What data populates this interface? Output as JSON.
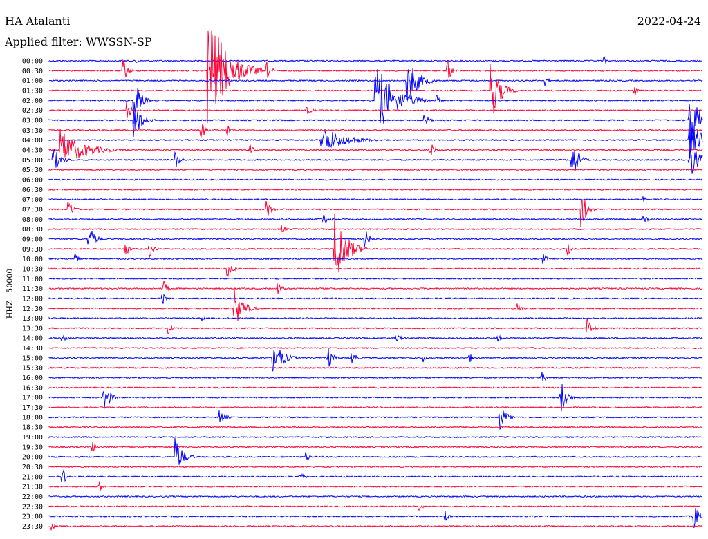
{
  "header": {
    "station": "HA Atalanti",
    "date": "2022-04-24",
    "filter": "Applied filter: WWSSN-SP"
  },
  "colors": {
    "even_trace": "#0000ff",
    "odd_trace": "#ff0033",
    "background": "#ffffff"
  },
  "chart_data": {
    "type": "line",
    "title": "HA Atalanti",
    "ylabel": "HHZ - 50000",
    "x_range_minutes": [
      0,
      30
    ],
    "rows": [
      "00:00",
      "00:30",
      "01:00",
      "01:30",
      "02:00",
      "02:30",
      "03:00",
      "03:30",
      "04:00",
      "04:30",
      "05:00",
      "05:30",
      "06:00",
      "06:30",
      "07:00",
      "07:30",
      "08:00",
      "08:30",
      "09:00",
      "09:30",
      "10:00",
      "10:30",
      "11:00",
      "11:30",
      "12:00",
      "12:30",
      "13:00",
      "13:30",
      "14:00",
      "14:30",
      "15:00",
      "15:30",
      "16:00",
      "16:30",
      "17:00",
      "17:30",
      "18:00",
      "18:30",
      "19:00",
      "19:30",
      "20:00",
      "20:30",
      "21:00",
      "21:30",
      "22:00",
      "22:30",
      "23:00",
      "23:30"
    ],
    "events": [
      {
        "row": 0,
        "minute": 4.0,
        "amp": 8,
        "dur": 0.3
      },
      {
        "row": 0,
        "minute": 25.5,
        "amp": 6,
        "dur": 0.3
      },
      {
        "row": 1,
        "minute": 3.4,
        "amp": 20,
        "dur": 0.6
      },
      {
        "row": 1,
        "minute": 7.3,
        "amp": 90,
        "dur": 2.5
      },
      {
        "row": 1,
        "minute": 10.0,
        "amp": 14,
        "dur": 0.6
      },
      {
        "row": 1,
        "minute": 18.3,
        "amp": 16,
        "dur": 0.6
      },
      {
        "row": 2,
        "minute": 16.4,
        "amp": 40,
        "dur": 1.5
      },
      {
        "row": 2,
        "minute": 22.8,
        "amp": 8,
        "dur": 0.4
      },
      {
        "row": 3,
        "minute": 20.3,
        "amp": 45,
        "dur": 1.2
      },
      {
        "row": 3,
        "minute": 26.9,
        "amp": 8,
        "dur": 0.3
      },
      {
        "row": 4,
        "minute": 15.0,
        "amp": 55,
        "dur": 2.5
      },
      {
        "row": 4,
        "minute": 3.9,
        "amp": 35,
        "dur": 0.8
      },
      {
        "row": 4,
        "minute": 17.8,
        "amp": 8,
        "dur": 0.5
      },
      {
        "row": 5,
        "minute": 3.6,
        "amp": 18,
        "dur": 0.5
      },
      {
        "row": 5,
        "minute": 11.8,
        "amp": 14,
        "dur": 0.6
      },
      {
        "row": 6,
        "minute": 3.9,
        "amp": 30,
        "dur": 1.0
      },
      {
        "row": 6,
        "minute": 17.2,
        "amp": 12,
        "dur": 0.6
      },
      {
        "row": 6,
        "minute": 29.4,
        "amp": 40,
        "dur": 2.0
      },
      {
        "row": 7,
        "minute": 7.0,
        "amp": 14,
        "dur": 0.6
      },
      {
        "row": 7,
        "minute": 8.2,
        "amp": 10,
        "dur": 0.5
      },
      {
        "row": 8,
        "minute": 12.5,
        "amp": 22,
        "dur": 3.0
      },
      {
        "row": 8,
        "minute": 29.4,
        "amp": 35,
        "dur": 1.5
      },
      {
        "row": 9,
        "minute": 0.5,
        "amp": 30,
        "dur": 3.0
      },
      {
        "row": 9,
        "minute": 9.2,
        "amp": 10,
        "dur": 0.5
      },
      {
        "row": 9,
        "minute": 17.5,
        "amp": 14,
        "dur": 0.5
      },
      {
        "row": 10,
        "minute": 0.2,
        "amp": 18,
        "dur": 1.0
      },
      {
        "row": 10,
        "minute": 5.8,
        "amp": 14,
        "dur": 0.6
      },
      {
        "row": 10,
        "minute": 24.0,
        "amp": 36,
        "dur": 0.8
      },
      {
        "row": 10,
        "minute": 29.4,
        "amp": 30,
        "dur": 1.2
      },
      {
        "row": 14,
        "minute": 27.3,
        "amp": 6,
        "dur": 0.3
      },
      {
        "row": 15,
        "minute": 0.9,
        "amp": 16,
        "dur": 0.6
      },
      {
        "row": 15,
        "minute": 10.0,
        "amp": 16,
        "dur": 0.6
      },
      {
        "row": 15,
        "minute": 24.4,
        "amp": 34,
        "dur": 0.8
      },
      {
        "row": 16,
        "minute": 12.5,
        "amp": 8,
        "dur": 1.2
      },
      {
        "row": 16,
        "minute": 27.3,
        "amp": 6,
        "dur": 0.6
      },
      {
        "row": 17,
        "minute": 10.7,
        "amp": 8,
        "dur": 0.4
      },
      {
        "row": 18,
        "minute": 1.8,
        "amp": 22,
        "dur": 0.8
      },
      {
        "row": 18,
        "minute": 14.5,
        "amp": 16,
        "dur": 0.6
      },
      {
        "row": 19,
        "minute": 3.5,
        "amp": 12,
        "dur": 0.5
      },
      {
        "row": 19,
        "minute": 4.6,
        "amp": 14,
        "dur": 0.6
      },
      {
        "row": 19,
        "minute": 13.1,
        "amp": 60,
        "dur": 1.5
      },
      {
        "row": 19,
        "minute": 23.8,
        "amp": 10,
        "dur": 0.5
      },
      {
        "row": 20,
        "minute": 1.2,
        "amp": 10,
        "dur": 0.4
      },
      {
        "row": 20,
        "minute": 22.7,
        "amp": 8,
        "dur": 0.5
      },
      {
        "row": 21,
        "minute": 8.2,
        "amp": 16,
        "dur": 0.6
      },
      {
        "row": 23,
        "minute": 5.2,
        "amp": 16,
        "dur": 0.6
      },
      {
        "row": 23,
        "minute": 10.5,
        "amp": 10,
        "dur": 0.6
      },
      {
        "row": 24,
        "minute": 5.2,
        "amp": 10,
        "dur": 0.5
      },
      {
        "row": 25,
        "minute": 8.5,
        "amp": 30,
        "dur": 1.2
      },
      {
        "row": 25,
        "minute": 21.5,
        "amp": 8,
        "dur": 0.6
      },
      {
        "row": 26,
        "minute": 7.0,
        "amp": 6,
        "dur": 0.4
      },
      {
        "row": 27,
        "minute": 5.5,
        "amp": 10,
        "dur": 0.4
      },
      {
        "row": 27,
        "minute": 24.7,
        "amp": 18,
        "dur": 0.6
      },
      {
        "row": 28,
        "minute": 0.6,
        "amp": 8,
        "dur": 0.5
      },
      {
        "row": 28,
        "minute": 15.9,
        "amp": 10,
        "dur": 0.6
      },
      {
        "row": 28,
        "minute": 20.6,
        "amp": 8,
        "dur": 0.5
      },
      {
        "row": 30,
        "minute": 10.3,
        "amp": 30,
        "dur": 1.2
      },
      {
        "row": 30,
        "minute": 12.8,
        "amp": 20,
        "dur": 0.6
      },
      {
        "row": 30,
        "minute": 13.9,
        "amp": 14,
        "dur": 0.5
      },
      {
        "row": 30,
        "minute": 19.3,
        "amp": 8,
        "dur": 0.5
      },
      {
        "row": 30,
        "minute": 17.2,
        "amp": 8,
        "dur": 0.3
      },
      {
        "row": 32,
        "minute": 22.6,
        "amp": 10,
        "dur": 0.6
      },
      {
        "row": 34,
        "minute": 2.5,
        "amp": 25,
        "dur": 0.8
      },
      {
        "row": 34,
        "minute": 23.5,
        "amp": 28,
        "dur": 0.8
      },
      {
        "row": 36,
        "minute": 7.8,
        "amp": 12,
        "dur": 0.8
      },
      {
        "row": 36,
        "minute": 20.7,
        "amp": 20,
        "dur": 0.8
      },
      {
        "row": 39,
        "minute": 2.0,
        "amp": 8,
        "dur": 0.5
      },
      {
        "row": 40,
        "minute": 5.8,
        "amp": 28,
        "dur": 1.0
      },
      {
        "row": 40,
        "minute": 11.8,
        "amp": 8,
        "dur": 0.5
      },
      {
        "row": 42,
        "minute": 0.6,
        "amp": 14,
        "dur": 0.6
      },
      {
        "row": 42,
        "minute": 11.5,
        "amp": 6,
        "dur": 0.8
      },
      {
        "row": 43,
        "minute": 2.3,
        "amp": 10,
        "dur": 0.5
      },
      {
        "row": 45,
        "minute": 17.0,
        "amp": 8,
        "dur": 0.4
      },
      {
        "row": 46,
        "minute": 18.2,
        "amp": 8,
        "dur": 0.5
      },
      {
        "row": 46,
        "minute": 29.6,
        "amp": 20,
        "dur": 0.8
      },
      {
        "row": 47,
        "minute": 0.1,
        "amp": 8,
        "dur": 0.4
      }
    ]
  }
}
